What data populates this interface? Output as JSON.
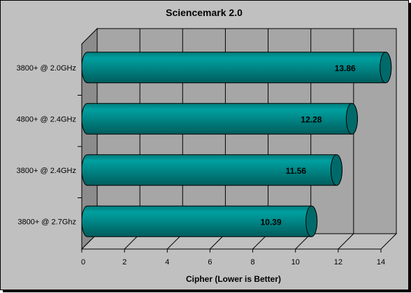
{
  "chart_data": {
    "type": "bar",
    "orientation": "horizontal",
    "title": "Sciencemark 2.0",
    "xlabel": "Cipher (Lower is Better)",
    "ylabel": "",
    "categories": [
      "3800+ @ 2.0GHz",
      "4800+ @ 2.4GHz",
      "3800+ @ 2.4GHz",
      "3800+ @ 2.7Ghz"
    ],
    "values": [
      13.86,
      12.28,
      11.56,
      10.39
    ],
    "data_labels": [
      "13.86",
      "12.28",
      "11.56",
      "10.39"
    ],
    "xlim": [
      0,
      14
    ],
    "xticks": [
      "0",
      "2",
      "4",
      "6",
      "8",
      "10",
      "12",
      "14"
    ],
    "grid": true,
    "legend": "none",
    "bar_color": "#008080",
    "background_color": "#c0c0c0",
    "wall_color": "#a6a6a6"
  }
}
